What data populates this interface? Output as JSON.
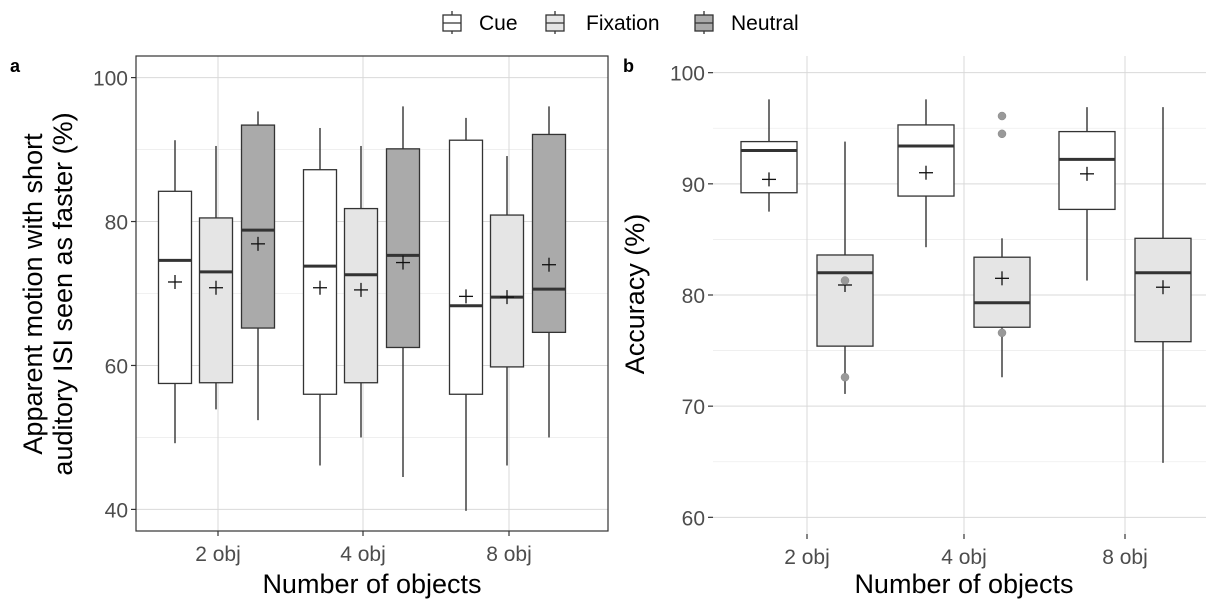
{
  "legend": {
    "items": [
      {
        "label": "Cue",
        "color": "#ffffff"
      },
      {
        "label": "Fixation",
        "color": "#e5e5e5"
      },
      {
        "label": "Neutral",
        "color": "#aaaaaa"
      }
    ]
  },
  "chart_data": [
    {
      "type": "box",
      "panel": "a",
      "xlabel": "Number of objects",
      "ylabel_lines": [
        "Apparent motion with short",
        "auditory ISI seen as faster (%)"
      ],
      "categories": [
        "2 obj",
        "4 obj",
        "8 obj"
      ],
      "ylim": [
        37,
        103
      ],
      "yticks": [
        40,
        60,
        80,
        100
      ],
      "grid": true,
      "series": [
        {
          "name": "Cue",
          "color": "#ffffff",
          "boxes": [
            {
              "min": 49.2,
              "q1": 57.5,
              "median": 74.6,
              "q3": 84.2,
              "max": 91.3,
              "mean": 71.6,
              "outliers": []
            },
            {
              "min": 46.1,
              "q1": 56.0,
              "median": 73.8,
              "q3": 87.2,
              "max": 93.0,
              "mean": 70.8,
              "outliers": []
            },
            {
              "min": 39.8,
              "q1": 56.0,
              "median": 68.3,
              "q3": 91.3,
              "max": 94.4,
              "mean": 69.6,
              "outliers": []
            }
          ]
        },
        {
          "name": "Fixation",
          "color": "#e5e5e5",
          "boxes": [
            {
              "min": 53.9,
              "q1": 57.6,
              "median": 73.0,
              "q3": 80.5,
              "max": 90.5,
              "mean": 70.8,
              "outliers": []
            },
            {
              "min": 50.0,
              "q1": 57.6,
              "median": 72.6,
              "q3": 81.8,
              "max": 90.5,
              "mean": 70.5,
              "outliers": []
            },
            {
              "min": 46.1,
              "q1": 59.8,
              "median": 69.5,
              "q3": 80.9,
              "max": 89.1,
              "mean": 69.5,
              "outliers": []
            }
          ]
        },
        {
          "name": "Neutral",
          "color": "#aaaaaa",
          "boxes": [
            {
              "min": 52.4,
              "q1": 65.2,
              "median": 78.8,
              "q3": 93.4,
              "max": 95.3,
              "mean": 76.9,
              "outliers": []
            },
            {
              "min": 44.5,
              "q1": 62.5,
              "median": 75.3,
              "q3": 90.1,
              "max": 96.0,
              "mean": 74.3,
              "outliers": []
            },
            {
              "min": 50.0,
              "q1": 64.6,
              "median": 70.6,
              "q3": 92.1,
              "max": 96.0,
              "mean": 74.0,
              "outliers": []
            }
          ]
        }
      ]
    },
    {
      "type": "box",
      "panel": "b",
      "xlabel": "Number of objects",
      "ylabel_lines": [
        "Accuracy (%)"
      ],
      "categories": [
        "2 obj",
        "4 obj",
        "8 obj"
      ],
      "ylim": [
        58.5,
        101.5
      ],
      "yticks": [
        60,
        70,
        80,
        90,
        100
      ],
      "grid": true,
      "series": [
        {
          "name": "Cue",
          "color": "#ffffff",
          "boxes": [
            {
              "min": 87.5,
              "q1": 89.2,
              "median": 93.0,
              "q3": 93.8,
              "max": 97.6,
              "mean": 90.4,
              "outliers": []
            },
            {
              "min": 84.3,
              "q1": 88.9,
              "median": 93.4,
              "q3": 95.3,
              "max": 97.6,
              "mean": 91.0,
              "outliers": []
            },
            {
              "min": 81.3,
              "q1": 87.7,
              "median": 92.2,
              "q3": 94.7,
              "max": 96.9,
              "mean": 90.9,
              "outliers": []
            }
          ]
        },
        {
          "name": "Fixation",
          "color": "#e5e5e5",
          "boxes": [
            {
              "min": 71.1,
              "q1": 75.4,
              "median": 82.0,
              "q3": 83.6,
              "max": 93.8,
              "mean": 80.9,
              "outliers": [
                81.3,
                72.6
              ]
            },
            {
              "min": 72.6,
              "q1": 77.1,
              "median": 79.3,
              "q3": 83.4,
              "max": 85.1,
              "mean": 81.5,
              "outliers": [
                96.1,
                94.5,
                76.6
              ]
            },
            {
              "min": 64.9,
              "q1": 75.8,
              "median": 82.0,
              "q3": 85.1,
              "max": 96.9,
              "mean": 80.7,
              "outliers": []
            }
          ]
        }
      ]
    }
  ]
}
